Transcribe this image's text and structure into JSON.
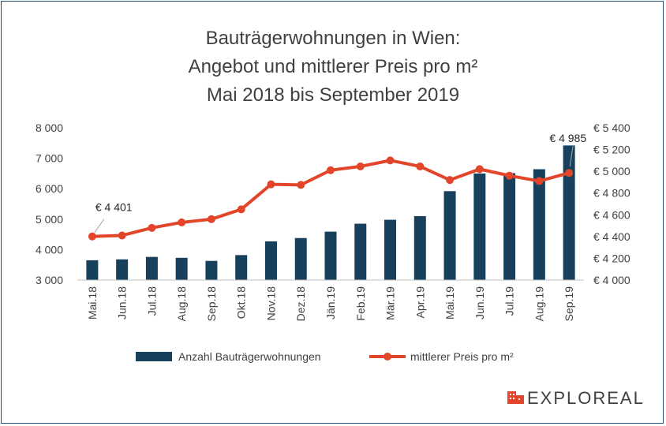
{
  "chart_data": {
    "type": "bar",
    "title": [
      "Bauträgerwohnungen in Wien:",
      "Angebot und mittlerer Preis pro m²",
      "Mai 2018 bis September 2019"
    ],
    "categories": [
      "Mai.18",
      "Jun.18",
      "Jul.18",
      "Aug.18",
      "Sep.18",
      "Okt.18",
      "Nov.18",
      "Dez.18",
      "Jän.19",
      "Feb.19",
      "Mär.19",
      "Apr.19",
      "Mai.19",
      "Jun.19",
      "Jul.19",
      "Aug.19",
      "Sep.19"
    ],
    "series": [
      {
        "name": "Anzahl Bauträgerwohnungen",
        "type": "bar",
        "axis": "left",
        "color": "#17405c",
        "values": [
          3650,
          3680,
          3760,
          3730,
          3630,
          3820,
          4270,
          4380,
          4590,
          4850,
          4980,
          5100,
          5920,
          6500,
          6510,
          6640,
          7420
        ]
      },
      {
        "name": "mittlerer Preis pro m²",
        "type": "line",
        "axis": "right",
        "color": "#e3452a",
        "values": [
          4401,
          4410,
          4480,
          4530,
          4560,
          4650,
          4880,
          4875,
          5010,
          5045,
          5100,
          5045,
          4920,
          5020,
          4960,
          4910,
          4985
        ]
      }
    ],
    "y_left": {
      "min": 3000,
      "max": 8000,
      "step": 1000,
      "tick_labels": [
        "3 000",
        "4 000",
        "5 000",
        "6 000",
        "7 000",
        "8 000"
      ]
    },
    "y_right": {
      "min": 4000,
      "max": 5400,
      "step": 200,
      "tick_labels": [
        "€ 4 000",
        "€ 4 200",
        "€ 4 400",
        "€ 4 600",
        "€ 4 800",
        "€ 5 000",
        "€ 5 200",
        "€ 5 400"
      ]
    },
    "annotations": [
      {
        "category_index": 0,
        "text": "€ 4 401"
      },
      {
        "category_index": 16,
        "text": "€ 4 985"
      }
    ],
    "legend": "bottom",
    "grid": false
  },
  "branding": {
    "logo_text": "EXPLOREAL",
    "logo_color": "#e3452a"
  }
}
